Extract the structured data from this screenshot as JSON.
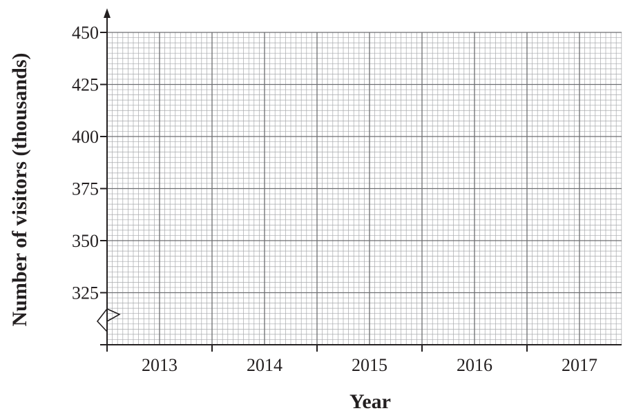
{
  "chart_data": {
    "type": "line",
    "title": "",
    "xlabel": "Year",
    "ylabel": "Number of visitors (thousands)",
    "categories": [
      "2013",
      "2014",
      "2015",
      "2016",
      "2017"
    ],
    "yticks": [
      "325",
      "350",
      "375",
      "400",
      "425",
      "450"
    ],
    "ylim": [
      300,
      450
    ],
    "y_axis_break": true,
    "grid": true,
    "series": []
  }
}
